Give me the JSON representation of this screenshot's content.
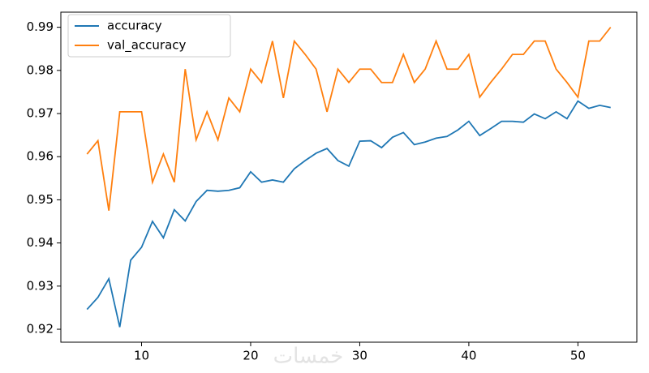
{
  "chart_data": {
    "type": "line",
    "x": [
      5,
      6,
      7,
      8,
      9,
      10,
      11,
      12,
      13,
      14,
      15,
      16,
      17,
      18,
      19,
      20,
      21,
      22,
      23,
      24,
      25,
      26,
      27,
      28,
      29,
      30,
      31,
      32,
      33,
      34,
      35,
      36,
      37,
      38,
      39,
      40,
      41,
      42,
      43,
      44,
      45,
      46,
      47,
      48,
      49,
      50,
      51,
      52,
      53
    ],
    "series": [
      {
        "name": "accuracy",
        "color": "#1f77b4",
        "values": [
          0.9246,
          0.9274,
          0.9317,
          0.9205,
          0.936,
          0.939,
          0.945,
          0.9412,
          0.9477,
          0.9451,
          0.9496,
          0.9522,
          0.952,
          0.9522,
          0.9528,
          0.9565,
          0.9541,
          0.9546,
          0.9541,
          0.9572,
          0.9591,
          0.9608,
          0.9619,
          0.9591,
          0.9578,
          0.9636,
          0.9637,
          0.9621,
          0.9645,
          0.9656,
          0.9628,
          0.9634,
          0.9643,
          0.9647,
          0.9662,
          0.9682,
          0.9649,
          0.9665,
          0.9682,
          0.9682,
          0.968,
          0.9699,
          0.9688,
          0.9704,
          0.9688,
          0.9729,
          0.9712,
          0.9719,
          0.9714
        ]
      },
      {
        "name": "val_accuracy",
        "color": "#ff7f0e",
        "values": [
          0.9606,
          0.9637,
          0.9475,
          0.9704,
          0.9704,
          0.9704,
          0.9541,
          0.9606,
          0.9541,
          0.9803,
          0.9639,
          0.9704,
          0.9639,
          0.9736,
          0.9704,
          0.9803,
          0.9772,
          0.9868,
          0.9736,
          0.9868,
          0.9837,
          0.9803,
          0.9704,
          0.9803,
          0.9772,
          0.9803,
          0.9803,
          0.9772,
          0.9772,
          0.9837,
          0.9772,
          0.9803,
          0.9868,
          0.9803,
          0.9803,
          0.9837,
          0.9738,
          0.9772,
          0.9803,
          0.9837,
          0.9837,
          0.9868,
          0.9868,
          0.9803,
          0.9772,
          0.9738,
          0.9868,
          0.9868,
          0.99
        ]
      }
    ],
    "xlim": [
      2.6,
      55.4
    ],
    "xticks": [
      10,
      20,
      30,
      40,
      50
    ],
    "ylim": [
      0.917,
      0.9935
    ],
    "yticks": [
      0.92,
      0.93,
      0.94,
      0.95,
      0.96,
      0.97,
      0.98,
      0.99
    ],
    "legend": "upper left",
    "grid": false,
    "watermark": "خمسات"
  }
}
